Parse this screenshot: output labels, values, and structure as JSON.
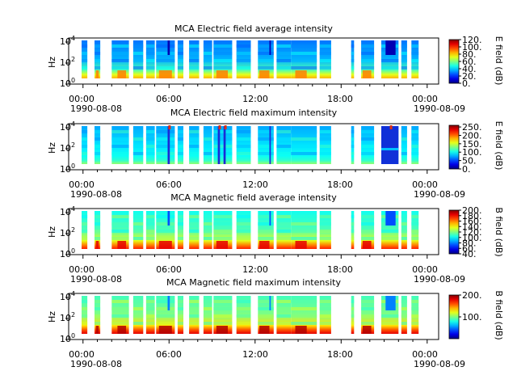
{
  "chart_data": [
    {
      "type": "heatmap",
      "title": "MCA  Electric field average intensity",
      "ylabel": "Hz",
      "colorbar_label": "E field (dB)",
      "colorbar_ticks": [
        "0.",
        "20.",
        "40.",
        "60.",
        "80.",
        "100.",
        "120."
      ],
      "colorbar_range": [
        0,
        120
      ],
      "y_ticks": [
        "10",
        "10",
        "10"
      ],
      "y_tick_exponents": [
        "0",
        "2",
        "4"
      ],
      "x_ticks": [
        "00:00",
        "06:00",
        "12:00",
        "18:00",
        "00:00"
      ],
      "x_dates": [
        "1990-08-08",
        "1990-08-09"
      ],
      "base_level": 0.3,
      "low_band_level": 0.6,
      "features": "average"
    },
    {
      "type": "heatmap",
      "title": "MCA  Electric field maximum intensity",
      "ylabel": "Hz",
      "colorbar_label": "E field (dB)",
      "colorbar_ticks": [
        "0.",
        "50.",
        "100.",
        "150.",
        "200.",
        "250."
      ],
      "colorbar_range": [
        0,
        260
      ],
      "y_ticks": [
        "10",
        "10",
        "10"
      ],
      "y_tick_exponents": [
        "0",
        "2",
        "4"
      ],
      "x_ticks": [
        "00:00",
        "06:00",
        "12:00",
        "18:00",
        "00:00"
      ],
      "x_dates": [
        "1990-08-08",
        "1990-08-09"
      ],
      "base_level": 0.35,
      "low_band_level": 0.42,
      "features": "maximum"
    },
    {
      "type": "heatmap",
      "title": "MCA  Magnetic field average intensity",
      "ylabel": "Hz",
      "colorbar_label": "B field (dB)",
      "colorbar_ticks": [
        "40.",
        "60.",
        "80.",
        "100.",
        "120.",
        "140.",
        "160.",
        "180.",
        "200."
      ],
      "colorbar_range": [
        40,
        200
      ],
      "y_ticks": [
        "10",
        "10",
        "10"
      ],
      "y_tick_exponents": [
        "0",
        "2",
        "4"
      ],
      "x_ticks": [
        "00:00",
        "06:00",
        "12:00",
        "18:00",
        "00:00"
      ],
      "x_dates": [
        "1990-08-08",
        "1990-08-09"
      ],
      "base_level": 0.45,
      "low_band_level": 0.75,
      "features": "average"
    },
    {
      "type": "heatmap",
      "title": "MCA  Magnetic field maximum intensity",
      "ylabel": "Hz",
      "colorbar_label": "B field (dB)",
      "colorbar_ticks": [
        "100.",
        "200."
      ],
      "colorbar_range": [
        0,
        200
      ],
      "y_ticks": [
        "10",
        "10",
        "10"
      ],
      "y_tick_exponents": [
        "0",
        "2",
        "4"
      ],
      "x_ticks": [
        "00:00",
        "06:00",
        "12:00",
        "18:00",
        "00:00"
      ],
      "x_dates": [
        "1990-08-08",
        "1990-08-09"
      ],
      "base_level": 0.5,
      "low_band_level": 0.8,
      "features": "average"
    }
  ],
  "data_segments_hours": [
    [
      -0.1,
      0.3
    ],
    [
      0.8,
      1.2
    ],
    [
      2.0,
      3.2
    ],
    [
      3.5,
      4.2
    ],
    [
      4.4,
      5.0
    ],
    [
      5.1,
      6.4
    ],
    [
      6.6,
      7.0
    ],
    [
      7.4,
      8.1
    ],
    [
      8.4,
      9.0
    ],
    [
      9.1,
      10.4
    ],
    [
      10.7,
      11.7
    ],
    [
      12.2,
      13.3
    ],
    [
      13.5,
      14.5
    ],
    [
      14.5,
      16.3
    ],
    [
      16.5,
      17.3
    ],
    [
      18.7,
      18.9
    ],
    [
      19.4,
      20.3
    ],
    [
      20.8,
      22.0
    ],
    [
      22.2,
      22.6
    ],
    [
      22.9,
      23.4
    ]
  ],
  "x_range_hours": [
    -1,
    24.8
  ]
}
